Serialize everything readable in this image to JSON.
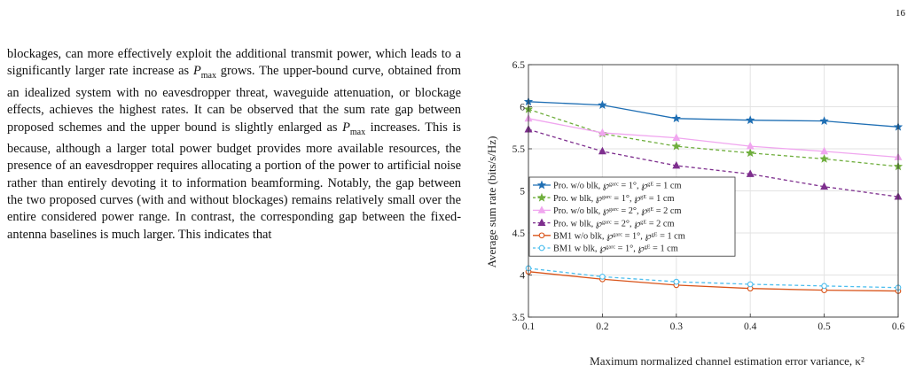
{
  "page": {
    "number": "16"
  },
  "text": {
    "p1_a": "blockages, can more effectively exploit the additional transmit power, which leads to a significantly larger rate increase as ",
    "p1_b": " grows. The upper-bound curve, obtained from an idealized system with no eavesdropper threat, waveguide attenuation, or blockage effects, achieves the highest rates. It can be observed that the sum rate gap between proposed schemes and the upper bound is slightly enlarged as ",
    "p1_c": " increases. This is because, although a larger total power budget provides more available resources, the presence of an eavesdropper requires allocating a portion of the power to artificial noise rather than entirely devoting it to information beamforming. Notably, the gap between the two proposed curves (with and without blockages) remains relatively small over the entire considered power range. In contrast, the corresponding gap between the fixed-antenna baselines is much larger. This indicates that",
    "pmax_base": "P",
    "pmax_sub": "max"
  },
  "chart_data": {
    "type": "line",
    "xlabel": "Maximum normalized channel estimation error variance, κ²",
    "ylabel": "Average sum rate (bits/s/Hz)",
    "xlim": [
      0.1,
      0.6
    ],
    "ylim": [
      3.5,
      6.5
    ],
    "x_ticks": [
      "0.1",
      "0.2",
      "0.3",
      "0.4",
      "0.5",
      "0.6"
    ],
    "y_ticks": [
      "3.5",
      "4",
      "4.5",
      "5",
      "5.5",
      "6",
      "6.5"
    ],
    "grid": true,
    "legend_position": "center-left",
    "x": [
      0.1,
      0.2,
      0.3,
      0.4,
      0.5,
      0.6
    ],
    "series": [
      {
        "name": "Pro. w/o blk, ℘ᵍᵃʳᶜ = 1°, ℘ᵍᴱ = 1 cm",
        "color": "#1f6fb4",
        "marker": "star",
        "dash": false,
        "values": [
          6.06,
          6.02,
          5.86,
          5.84,
          5.83,
          5.76
        ]
      },
      {
        "name": "Pro. w blk, ℘ᵍᵃʳᶜ = 1°, ℘ᵍᴱ = 1 cm",
        "color": "#6fae3d",
        "marker": "star",
        "dash": true,
        "values": [
          5.97,
          5.68,
          5.53,
          5.45,
          5.38,
          5.29
        ]
      },
      {
        "name": "Pro. w/o blk, ℘ᵍᵃʳᶜ = 2°, ℘ᵍᴱ = 2 cm",
        "color": "#f0a6ef",
        "marker": "triangle",
        "dash": false,
        "values": [
          5.86,
          5.69,
          5.63,
          5.53,
          5.47,
          5.4
        ]
      },
      {
        "name": "Pro. w blk, ℘ᵍᵃʳᶜ = 2°, ℘ᵍᴱ = 2 cm",
        "color": "#7e2f8e",
        "marker": "triangle",
        "dash": true,
        "values": [
          5.73,
          5.47,
          5.3,
          5.2,
          5.05,
          4.93
        ]
      },
      {
        "name": "BM1 w/o blk, ℘ᵍᵃʳᶜ = 1°, ℘ᵍᴱ = 1 cm",
        "color": "#d9541a",
        "marker": "circle",
        "dash": false,
        "values": [
          4.04,
          3.95,
          3.88,
          3.84,
          3.82,
          3.81
        ]
      },
      {
        "name": "BM1 w blk, ℘ᵍᵃʳᶜ = 1°, ℘ᵍᴱ = 1 cm",
        "color": "#4dbeee",
        "marker": "circle",
        "dash": true,
        "values": [
          4.08,
          3.98,
          3.92,
          3.89,
          3.87,
          3.85
        ]
      }
    ]
  }
}
